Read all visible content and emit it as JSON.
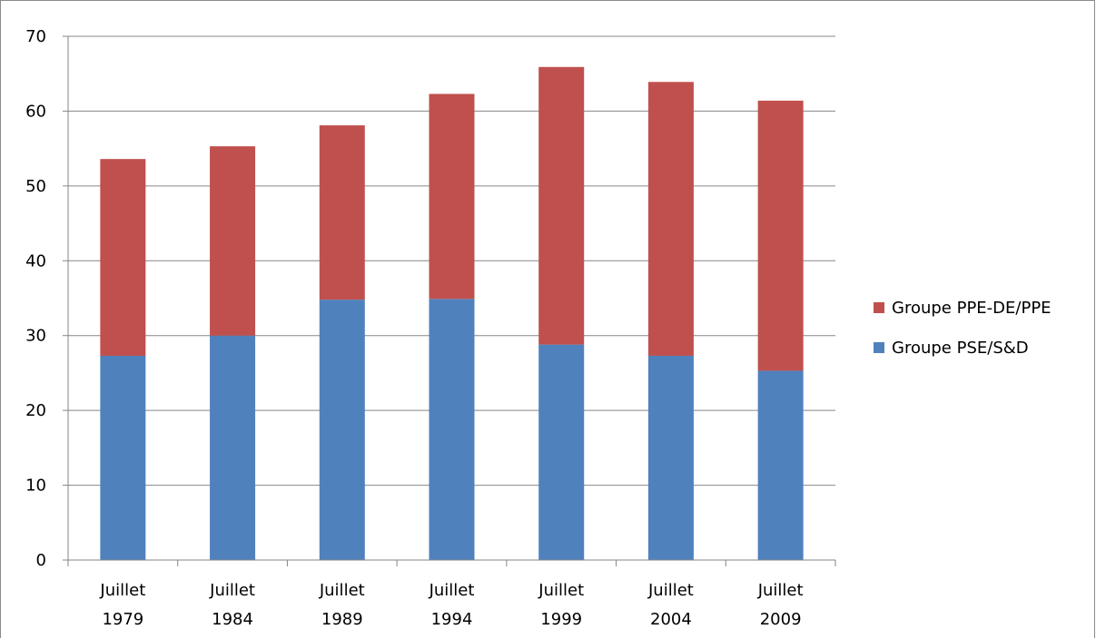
{
  "chart_data": {
    "type": "bar",
    "stacked": true,
    "title": "",
    "xlabel": "",
    "ylabel": "",
    "ylim": [
      0,
      70
    ],
    "yticks": [
      0,
      10,
      20,
      30,
      40,
      50,
      60,
      70
    ],
    "grid": true,
    "legend_position": "right",
    "categories": [
      [
        "Juillet",
        "1979"
      ],
      [
        "Juillet",
        "1984"
      ],
      [
        "Juillet",
        "1989"
      ],
      [
        "Juillet",
        "1994"
      ],
      [
        "Juillet",
        "1999"
      ],
      [
        "Juillet",
        "2004"
      ],
      [
        "Juillet",
        "2009"
      ]
    ],
    "series": [
      {
        "name": "Groupe PSE/S&D",
        "color": "#4F81BD",
        "values": [
          27.3,
          30.0,
          34.8,
          34.9,
          28.8,
          27.3,
          25.3
        ]
      },
      {
        "name": "Groupe PPE-DE/PPE",
        "color": "#C0504D",
        "values": [
          26.3,
          25.3,
          23.3,
          27.4,
          37.1,
          36.6,
          36.1
        ]
      }
    ],
    "legend_order": [
      1,
      0
    ]
  }
}
